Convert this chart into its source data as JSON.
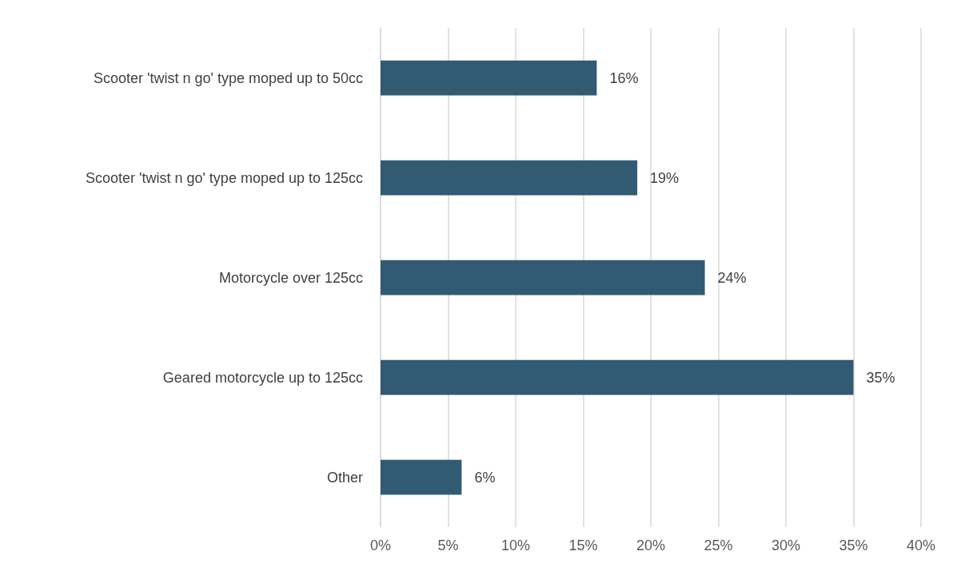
{
  "chart_data": {
    "type": "bar",
    "orientation": "horizontal",
    "categories": [
      "Scooter 'twist n go' type moped up to 50cc",
      "Scooter 'twist n go' type moped up to 125cc",
      "Motorcycle over 125cc",
      "Geared motorcycle up to 125cc",
      "Other"
    ],
    "values": [
      16,
      19,
      24,
      35,
      6
    ],
    "value_labels": [
      "16%",
      "19%",
      "24%",
      "35%",
      "6%"
    ],
    "color": "#335a73",
    "xlim": [
      0,
      40
    ],
    "xticks": [
      {
        "value": 0,
        "label": "0%"
      },
      {
        "value": 5,
        "label": "5%"
      },
      {
        "value": 10,
        "label": "10%"
      },
      {
        "value": 15,
        "label": "15%"
      },
      {
        "value": 20,
        "label": "20%"
      },
      {
        "value": 25,
        "label": "25%"
      },
      {
        "value": 30,
        "label": "30%"
      },
      {
        "value": 35,
        "label": "35%"
      },
      {
        "value": 40,
        "label": "40%"
      }
    ],
    "grid": "x"
  }
}
